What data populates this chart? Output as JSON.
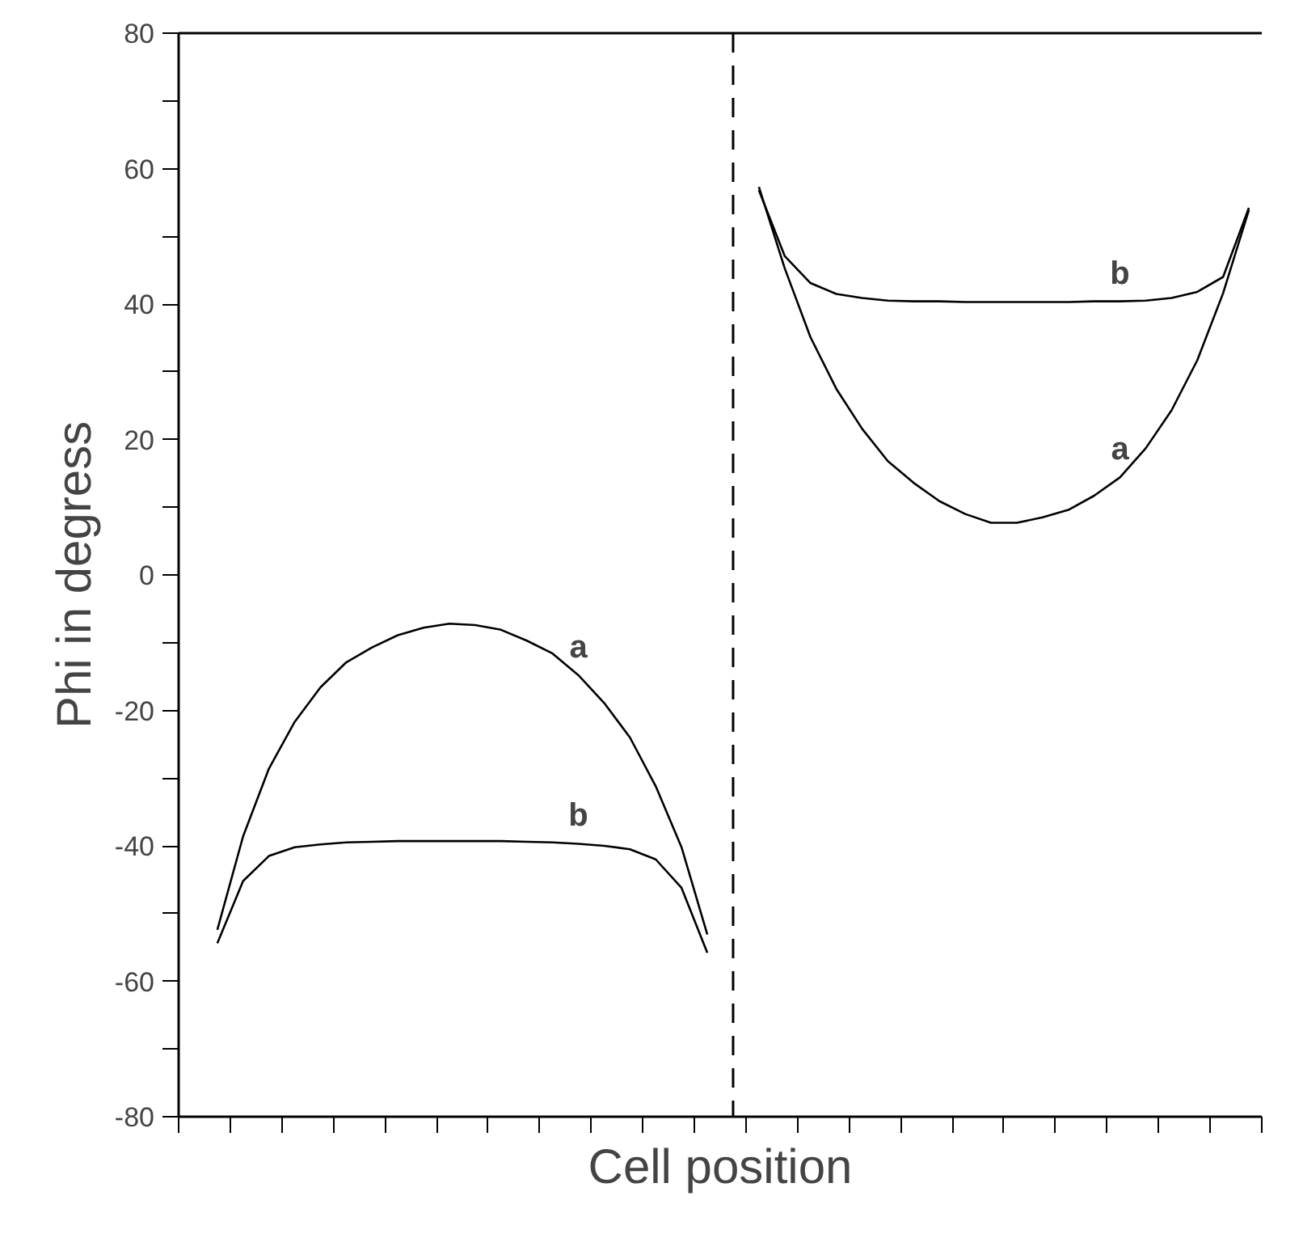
{
  "chart_data": {
    "type": "line",
    "xlabel": "Cell position",
    "ylabel": "Phi in degress",
    "ylim": [
      -80,
      80
    ],
    "categories": [
      null,
      null,
      null,
      null,
      null,
      null,
      null,
      null,
      null,
      null,
      null,
      null,
      null,
      null,
      null,
      null,
      null,
      null,
      null,
      null,
      null,
      null,
      null,
      null,
      null,
      null,
      null,
      null,
      null,
      null,
      null,
      null,
      null,
      null,
      null,
      null,
      null,
      null,
      null,
      null,
      null,
      null
    ],
    "yticks": [
      -80,
      {
        "value": -70,
        "label": null
      },
      -60,
      {
        "value": -50,
        "label": null
      },
      -40,
      {
        "value": -30,
        "label": null
      },
      -20,
      {
        "value": -10,
        "label": null
      },
      0,
      {
        "value": 10,
        "label": null
      },
      20,
      {
        "value": 30,
        "label": null
      },
      40,
      {
        "value": 50,
        "label": null
      },
      60,
      {
        "value": 70,
        "label": null
      },
      80
    ],
    "grid": false,
    "legend": false,
    "marker": "none",
    "line_style": "solid",
    "series": [
      {
        "name": "a",
        "color": "#000000",
        "values": [
          null,
          -52.4,
          -38.6,
          -28.6,
          -21.7,
          -16.6,
          -12.9,
          -10.7,
          -8.9,
          -7.8,
          -7.2,
          -7.4,
          -8.1,
          -9.7,
          -11.6,
          -14.8,
          -18.9,
          -24.0,
          -31.2,
          -40.2,
          -53.1,
          null,
          null,
          null,
          null,
          null,
          null,
          null,
          null,
          null,
          null,
          null,
          null,
          null,
          null,
          null,
          null,
          null,
          null,
          null,
          null,
          null
        ]
      },
      {
        "name": "b",
        "color": "#000000",
        "values": [
          null,
          -54.4,
          -45.2,
          -41.5,
          -40.2,
          -39.8,
          -39.5,
          -39.4,
          -39.3,
          -39.3,
          -39.3,
          -39.3,
          -39.3,
          -39.4,
          -39.5,
          -39.7,
          -40.0,
          -40.5,
          -42.0,
          -46.2,
          -55.8,
          null,
          null,
          null,
          null,
          null,
          null,
          null,
          null,
          null,
          null,
          null,
          null,
          null,
          null,
          null,
          null,
          null,
          null,
          null,
          null,
          null
        ]
      },
      {
        "name": "a",
        "color": "#000000",
        "values": [
          null,
          null,
          null,
          null,
          null,
          null,
          null,
          null,
          null,
          null,
          null,
          null,
          null,
          null,
          null,
          null,
          null,
          null,
          null,
          null,
          null,
          null,
          57.3,
          45.3,
          35.1,
          27.5,
          21.6,
          16.8,
          13.6,
          10.9,
          9.0,
          7.7,
          7.7,
          8.5,
          9.6,
          11.7,
          14.4,
          18.7,
          24.3,
          31.7,
          41.6,
          53.9
        ]
      },
      {
        "name": "b",
        "color": "#000000",
        "values": [
          null,
          null,
          null,
          null,
          null,
          null,
          null,
          null,
          null,
          null,
          null,
          null,
          null,
          null,
          null,
          null,
          null,
          null,
          null,
          null,
          null,
          null,
          56.8,
          47.1,
          43.1,
          41.5,
          40.9,
          40.5,
          40.4,
          40.4,
          40.3,
          40.3,
          40.3,
          40.3,
          40.3,
          40.4,
          40.4,
          40.5,
          40.9,
          41.8,
          44.0,
          54.2
        ]
      }
    ]
  }
}
